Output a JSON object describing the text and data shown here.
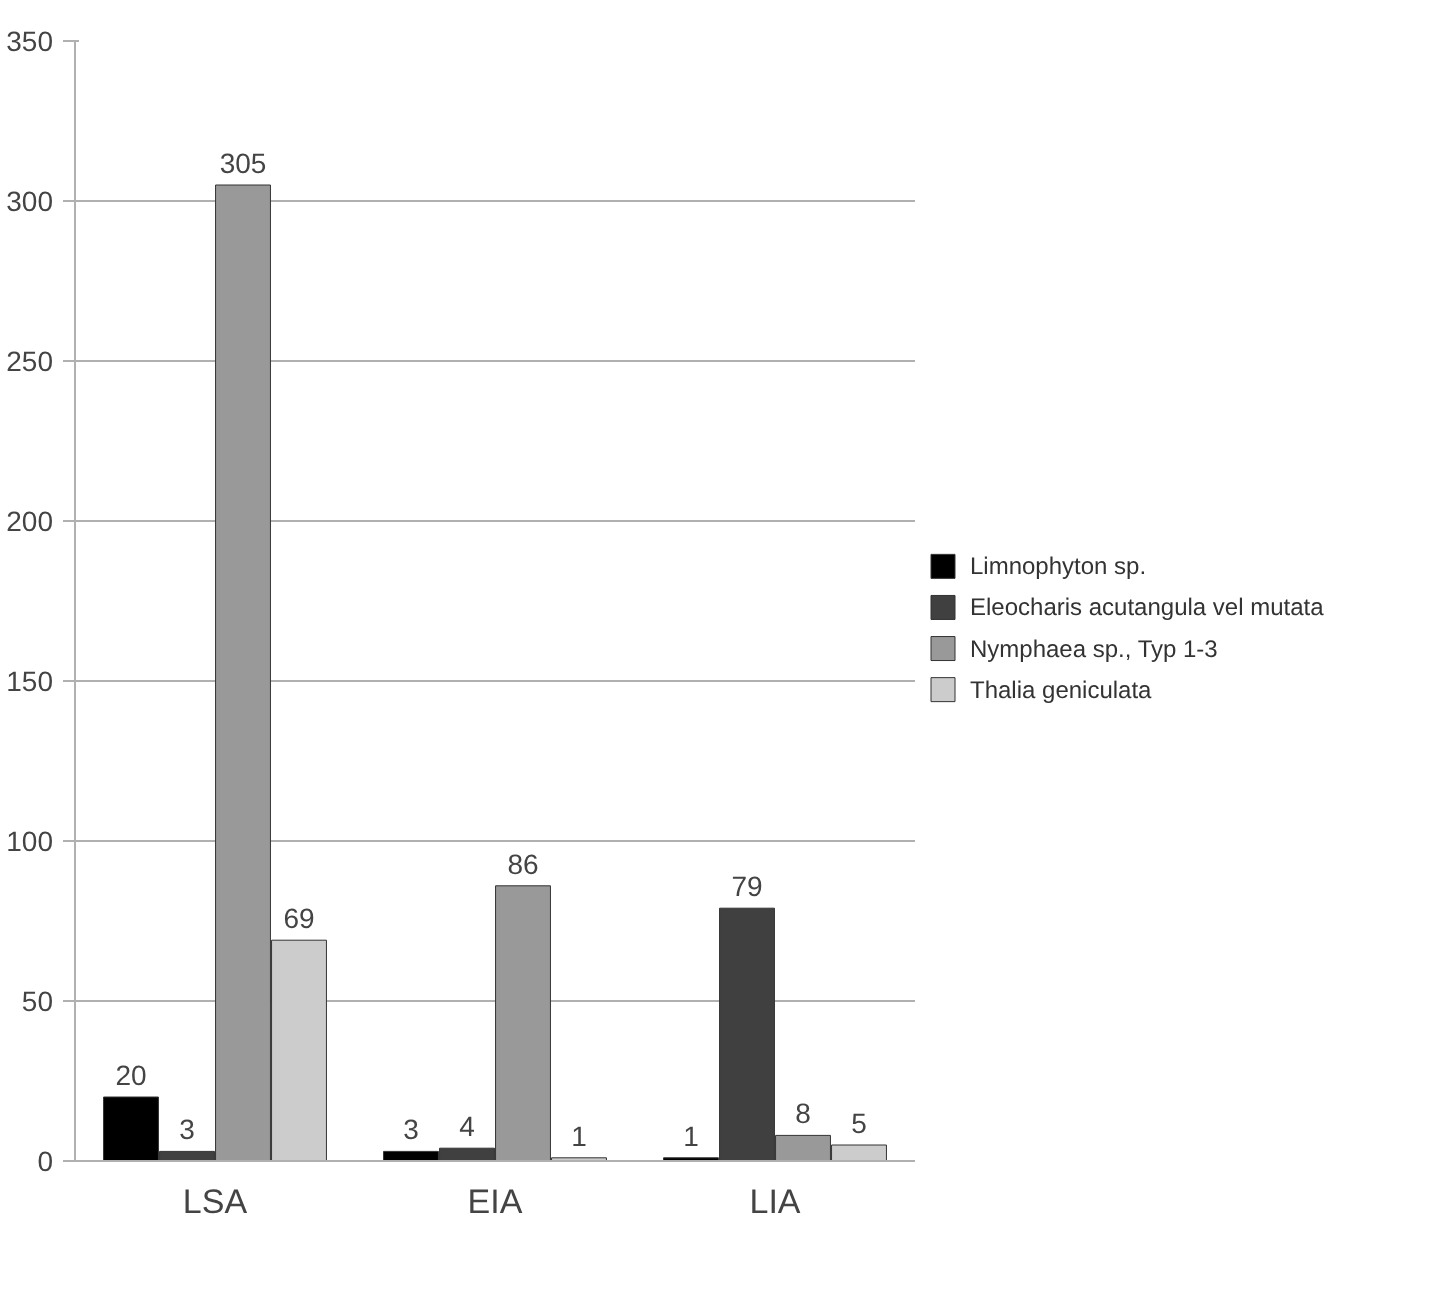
{
  "chart_data": {
    "type": "bar",
    "categories": [
      "LSA",
      "EIA",
      "LIA"
    ],
    "series": [
      {
        "name": "Limnophyton sp.",
        "color": "#000000",
        "values": [
          20,
          3,
          1
        ]
      },
      {
        "name": "Eleocharis acutangula vel mutata",
        "color": "#404040",
        "values": [
          3,
          4,
          79
        ]
      },
      {
        "name": "Nymphaea sp., Typ 1-3",
        "color": "#999999",
        "values": [
          305,
          86,
          8
        ]
      },
      {
        "name": "Thalia geniculata",
        "color": "#cccccc",
        "values": [
          69,
          1,
          5
        ]
      }
    ],
    "ylim": [
      0,
      350
    ],
    "yticks": [
      0,
      50,
      100,
      150,
      200,
      250,
      300,
      350
    ],
    "grid": "y",
    "legend": "right",
    "data_labels": true
  }
}
